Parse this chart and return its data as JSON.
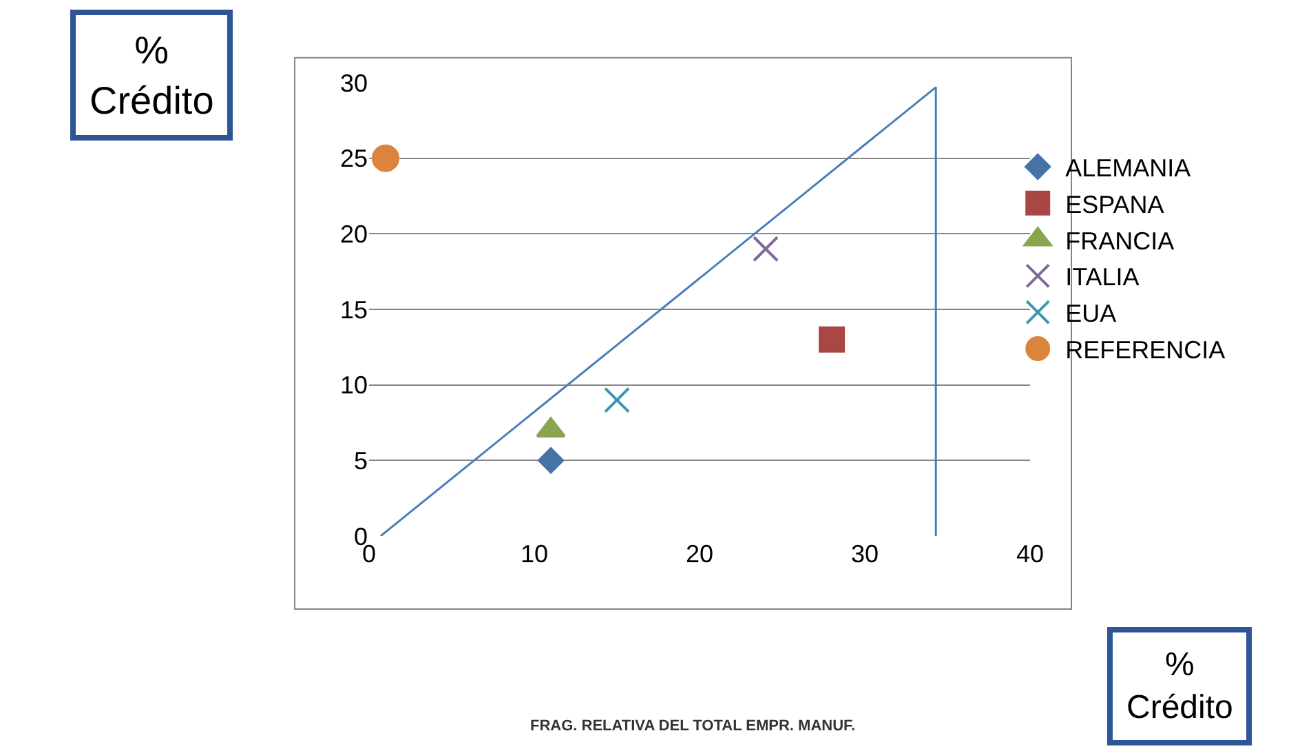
{
  "chart_data": {
    "type": "scatter",
    "annotations": [
      "% Crédito",
      "% Crédito",
      "FRAG. RELATIVA DEL TOTAL EMPR. MANUF."
    ],
    "xlim": [
      0,
      40
    ],
    "xticks": [
      0,
      10,
      20,
      30,
      40
    ],
    "ylim": [
      0,
      30
    ],
    "yticks": [
      0,
      5,
      10,
      15,
      20,
      25,
      30
    ],
    "grid": "y",
    "legend": "right",
    "series": [
      {
        "name": "ALEMANIA",
        "color": "#4572a7",
        "marker": "diamond",
        "x": [
          11
        ],
        "values": [
          5
        ]
      },
      {
        "name": "ESPANA",
        "color": "#aa4643",
        "marker": "square",
        "x": [
          28
        ],
        "values": [
          13
        ]
      },
      {
        "name": "FRANCIA",
        "color": "#89a54e",
        "marker": "triangle",
        "x": [
          11
        ],
        "values": [
          7
        ]
      },
      {
        "name": "ITALIA",
        "color": "#80699b",
        "marker": "cross",
        "x": [
          24
        ],
        "values": [
          19
        ]
      },
      {
        "name": "EUA",
        "color": "#3d96ae",
        "marker": "cross",
        "x": [
          15
        ],
        "values": [
          9
        ]
      },
      {
        "name": "REFERENCIA",
        "color": "#db843d",
        "marker": "circle",
        "x": [
          1
        ],
        "values": [
          25
        ]
      },
      {
        "type": "line",
        "color": "#4a7ebb",
        "marker": "none",
        "x": [
          0.7,
          34.3,
          34.3
        ],
        "values": [
          0,
          29.7,
          0
        ]
      }
    ]
  }
}
